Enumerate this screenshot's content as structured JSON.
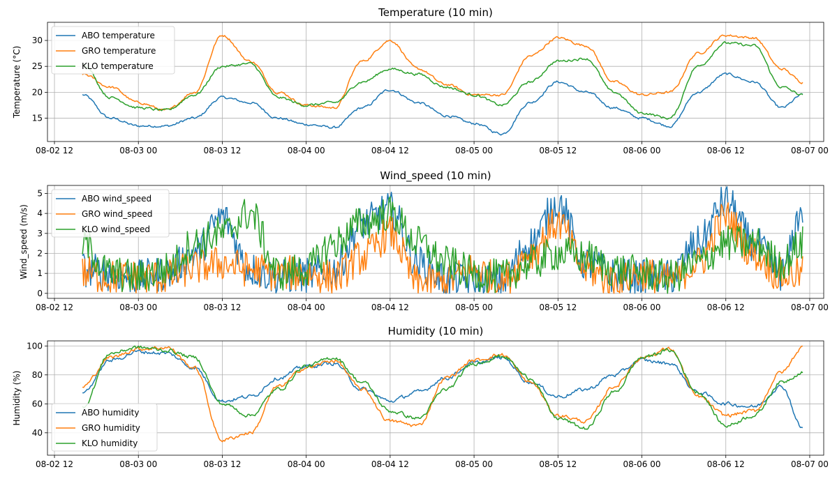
{
  "chart_data": [
    {
      "type": "line",
      "title": "Temperature (10 min)",
      "xlabel": "",
      "ylabel": "Temperature (°C)",
      "xlim": [
        "2023-08-02 11:00",
        "2023-08-07 02:00"
      ],
      "ylim": [
        10.5,
        33.5
      ],
      "x_ticks": [
        "08-02 12",
        "08-03 00",
        "08-03 12",
        "08-04 00",
        "08-04 12",
        "08-05 00",
        "08-05 12",
        "08-06 00",
        "08-06 12",
        "08-07 00"
      ],
      "y_ticks": [
        15,
        20,
        25,
        30
      ],
      "grid": true,
      "legend": "upper left",
      "x": [
        "2023-08-02 16:00",
        "2023-08-02 20:00",
        "2023-08-03 00:00",
        "2023-08-03 04:00",
        "2023-08-03 08:00",
        "2023-08-03 12:00",
        "2023-08-03 16:00",
        "2023-08-03 20:00",
        "2023-08-04 00:00",
        "2023-08-04 04:00",
        "2023-08-04 08:00",
        "2023-08-04 12:00",
        "2023-08-04 16:00",
        "2023-08-04 20:00",
        "2023-08-05 00:00",
        "2023-08-05 04:00",
        "2023-08-05 08:00",
        "2023-08-05 12:00",
        "2023-08-05 16:00",
        "2023-08-05 20:00",
        "2023-08-06 00:00",
        "2023-08-06 04:00",
        "2023-08-06 08:00",
        "2023-08-06 12:00",
        "2023-08-06 16:00",
        "2023-08-06 20:00",
        "2023-08-06 23:00"
      ],
      "series": [
        {
          "name": "ABO temperature",
          "color": "#1f77b4",
          "values": [
            19.5,
            15.0,
            13.5,
            13.5,
            15.0,
            19.0,
            18.0,
            15.0,
            13.8,
            13.2,
            17.0,
            20.5,
            18.0,
            15.5,
            14.0,
            12.0,
            18.0,
            22.0,
            20.0,
            17.0,
            15.0,
            13.5,
            20.0,
            23.5,
            22.0,
            17.0,
            19.5
          ]
        },
        {
          "name": "GRO temperature",
          "color": "#ff7f0e",
          "values": [
            23.5,
            21.0,
            18.0,
            16.5,
            20.0,
            31.0,
            26.0,
            20.0,
            17.5,
            17.0,
            26.0,
            30.0,
            24.5,
            21.5,
            19.5,
            19.5,
            27.0,
            30.5,
            29.0,
            22.0,
            19.5,
            20.0,
            27.5,
            31.0,
            30.5,
            24.5,
            22.0
          ]
        },
        {
          "name": "KLO temperature",
          "color": "#2ca02c",
          "values": [
            25.5,
            19.0,
            17.0,
            16.5,
            19.5,
            25.0,
            25.5,
            19.0,
            17.5,
            18.0,
            22.0,
            24.5,
            23.5,
            21.0,
            19.5,
            17.5,
            22.0,
            26.0,
            26.5,
            20.0,
            16.0,
            15.0,
            25.0,
            29.5,
            29.0,
            21.0,
            19.5
          ]
        }
      ]
    },
    {
      "type": "line",
      "title": "Wind_speed (10 min)",
      "xlabel": "",
      "ylabel": "Wind_speed (m/s)",
      "xlim": [
        "2023-08-02 11:00",
        "2023-08-07 02:00"
      ],
      "ylim": [
        -0.25,
        5.4
      ],
      "x_ticks": [
        "08-02 12",
        "08-03 00",
        "08-03 12",
        "08-04 00",
        "08-04 12",
        "08-05 00",
        "08-05 12",
        "08-06 00",
        "08-06 12",
        "08-07 00"
      ],
      "y_ticks": [
        0,
        1,
        2,
        3,
        4,
        5
      ],
      "grid": true,
      "legend": "upper left",
      "x": [
        "2023-08-02 16:00",
        "2023-08-02 20:00",
        "2023-08-03 00:00",
        "2023-08-03 04:00",
        "2023-08-03 08:00",
        "2023-08-03 12:00",
        "2023-08-03 16:00",
        "2023-08-03 20:00",
        "2023-08-04 00:00",
        "2023-08-04 04:00",
        "2023-08-04 08:00",
        "2023-08-04 12:00",
        "2023-08-04 16:00",
        "2023-08-04 20:00",
        "2023-08-05 00:00",
        "2023-08-05 04:00",
        "2023-08-05 08:00",
        "2023-08-05 12:00",
        "2023-08-05 16:00",
        "2023-08-05 20:00",
        "2023-08-06 00:00",
        "2023-08-06 04:00",
        "2023-08-06 08:00",
        "2023-08-06 12:00",
        "2023-08-06 16:00",
        "2023-08-06 20:00",
        "2023-08-06 23:00"
      ],
      "series": [
        {
          "name": "ABO wind_speed",
          "color": "#1f77b4",
          "values": [
            1.2,
            1.0,
            0.8,
            1.0,
            2.0,
            3.8,
            1.2,
            0.8,
            0.9,
            1.2,
            3.5,
            4.2,
            1.5,
            0.7,
            0.6,
            0.6,
            2.5,
            4.5,
            1.5,
            0.9,
            0.8,
            0.8,
            2.5,
            4.6,
            2.5,
            1.0,
            4.2
          ]
        },
        {
          "name": "GRO wind_speed",
          "color": "#ff7f0e",
          "values": [
            1.0,
            0.8,
            0.8,
            0.8,
            1.3,
            1.5,
            1.2,
            1.0,
            1.0,
            0.8,
            1.8,
            3.0,
            0.5,
            0.6,
            1.2,
            0.6,
            2.0,
            3.5,
            1.2,
            0.6,
            1.0,
            0.6,
            1.5,
            3.8,
            2.0,
            0.9,
            1.0
          ]
        },
        {
          "name": "KLO wind_speed",
          "color": "#2ca02c",
          "values": [
            2.5,
            1.0,
            0.8,
            1.2,
            2.5,
            3.0,
            4.0,
            1.0,
            1.2,
            2.5,
            3.5,
            4.0,
            2.5,
            1.5,
            1.0,
            0.8,
            1.5,
            2.0,
            1.8,
            1.2,
            1.0,
            0.8,
            1.5,
            2.5,
            2.5,
            1.5,
            2.5
          ]
        }
      ]
    },
    {
      "type": "line",
      "title": "Humidity (10 min)",
      "xlabel": "",
      "ylabel": "Humidity (%)",
      "xlim": [
        "2023-08-02 11:00",
        "2023-08-07 02:00"
      ],
      "ylim": [
        24.5,
        103.5
      ],
      "x_ticks": [
        "08-02 12",
        "08-03 00",
        "08-03 12",
        "08-04 00",
        "08-04 12",
        "08-05 00",
        "08-05 12",
        "08-06 00",
        "08-06 12",
        "08-07 00"
      ],
      "y_ticks": [
        40,
        60,
        80,
        100
      ],
      "grid": true,
      "legend": "lower left",
      "x": [
        "2023-08-02 16:00",
        "2023-08-02 20:00",
        "2023-08-03 00:00",
        "2023-08-03 04:00",
        "2023-08-03 08:00",
        "2023-08-03 12:00",
        "2023-08-03 16:00",
        "2023-08-03 20:00",
        "2023-08-04 00:00",
        "2023-08-04 04:00",
        "2023-08-04 08:00",
        "2023-08-04 12:00",
        "2023-08-04 16:00",
        "2023-08-04 20:00",
        "2023-08-05 00:00",
        "2023-08-05 04:00",
        "2023-08-05 08:00",
        "2023-08-05 12:00",
        "2023-08-05 16:00",
        "2023-08-05 20:00",
        "2023-08-06 00:00",
        "2023-08-06 04:00",
        "2023-08-06 08:00",
        "2023-08-06 12:00",
        "2023-08-06 16:00",
        "2023-08-06 20:00",
        "2023-08-06 23:00"
      ],
      "series": [
        {
          "name": "ABO humidity",
          "color": "#1f77b4",
          "values": [
            68,
            90,
            96,
            95,
            85,
            62,
            65,
            78,
            86,
            88,
            70,
            62,
            68,
            78,
            88,
            92,
            75,
            65,
            70,
            80,
            90,
            88,
            68,
            60,
            58,
            72,
            43
          ]
        },
        {
          "name": "GRO humidity",
          "color": "#ff7f0e",
          "values": [
            72,
            92,
            98,
            99,
            85,
            35,
            40,
            72,
            85,
            90,
            70,
            48,
            45,
            78,
            90,
            94,
            75,
            52,
            48,
            72,
            92,
            98,
            65,
            52,
            55,
            82,
            99
          ]
        },
        {
          "name": "KLO humidity",
          "color": "#2ca02c",
          "values": [
            58,
            95,
            99,
            97,
            92,
            60,
            52,
            70,
            86,
            92,
            75,
            55,
            50,
            70,
            88,
            93,
            78,
            50,
            43,
            68,
            92,
            97,
            68,
            45,
            52,
            75,
            82
          ]
        }
      ]
    }
  ]
}
